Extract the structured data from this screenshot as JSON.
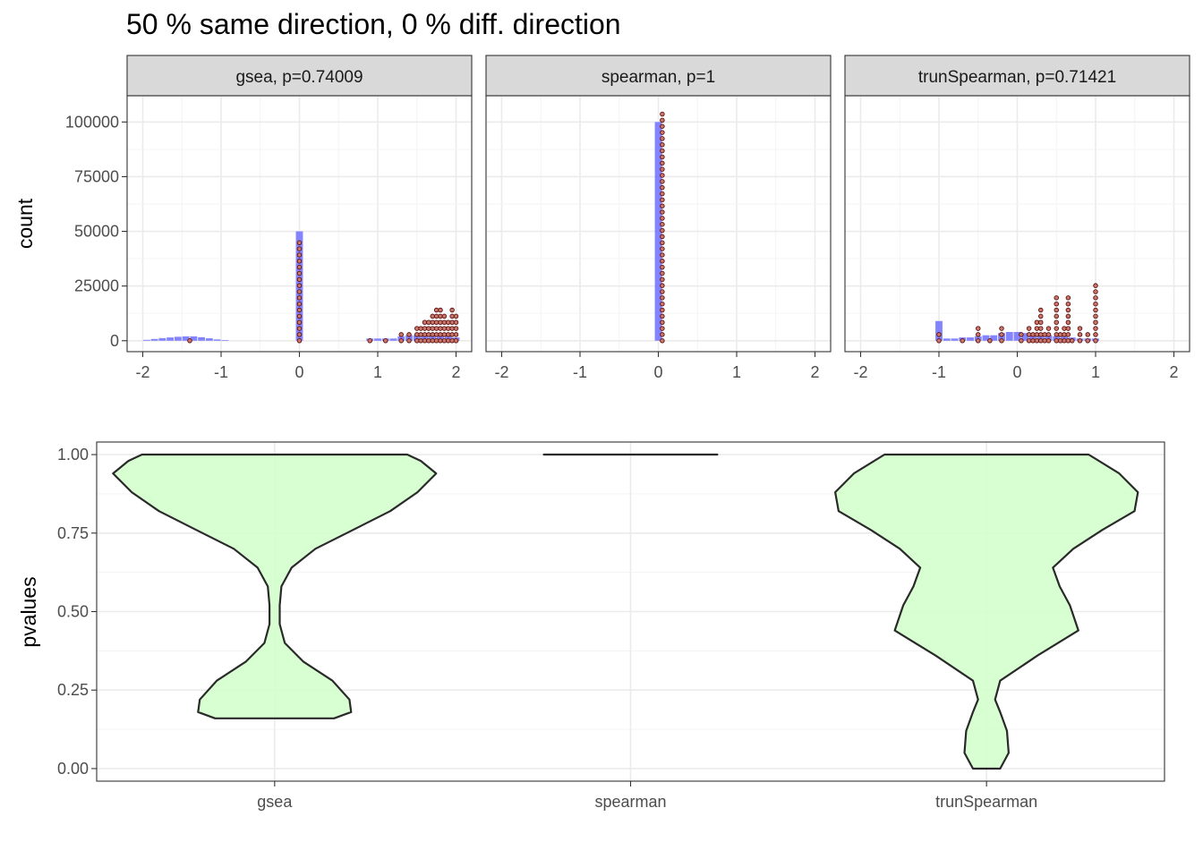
{
  "figure": {
    "title": "50 % same direction, 0 % diff. direction",
    "colors": {
      "hist_fill": "#6f6fff",
      "dot_fill": "#c8776a",
      "dot_edge": "#5a1010",
      "violin_fill": "#d4ffcc",
      "violin_edge": "#2a2a2a",
      "strip_bg": "#d9d9d9"
    }
  },
  "chart_data": [
    {
      "type": "histogram",
      "panel": "top",
      "facets": [
        {
          "label": "gsea, p=0.74009",
          "hist": [
            [
              -1.95,
              400
            ],
            [
              -1.85,
              800
            ],
            [
              -1.75,
              1200
            ],
            [
              -1.65,
              1500
            ],
            [
              -1.55,
              1800
            ],
            [
              -1.45,
              2000
            ],
            [
              -1.35,
              2000
            ],
            [
              -1.25,
              1600
            ],
            [
              -1.15,
              1100
            ],
            [
              -1.05,
              600
            ],
            [
              -0.95,
              300
            ],
            [
              0,
              50000
            ],
            [
              0.9,
              1000
            ],
            [
              1.0,
              1000
            ],
            [
              1.1,
              1000
            ],
            [
              1.2,
              1000
            ],
            [
              1.3,
              2000
            ],
            [
              1.4,
              2500
            ],
            [
              1.5,
              2500
            ],
            [
              1.6,
              3000
            ],
            [
              1.7,
              3000
            ],
            [
              1.8,
              3000
            ],
            [
              1.9,
              2500
            ],
            [
              2.0,
              1500
            ]
          ],
          "dots": [
            [
              -1.4,
              2000
            ],
            [
              0,
              45000
            ],
            [
              0.9,
              500
            ],
            [
              1.1,
              1000
            ],
            [
              1.3,
              5000
            ],
            [
              1.4,
              5000
            ],
            [
              1.5,
              8000
            ],
            [
              1.55,
              6000
            ],
            [
              1.6,
              10000
            ],
            [
              1.65,
              10000
            ],
            [
              1.7,
              13000
            ],
            [
              1.75,
              15000
            ],
            [
              1.8,
              14000
            ],
            [
              1.85,
              13000
            ],
            [
              1.9,
              10000
            ],
            [
              1.95,
              16000
            ],
            [
              2.0,
              13000
            ]
          ]
        },
        {
          "label": "spearman, p=1",
          "hist": [
            [
              0,
              100000
            ]
          ],
          "dots": [
            [
              0.05,
              105000
            ]
          ]
        },
        {
          "label": "trunSpearman, p=0.71421",
          "hist": [
            [
              -1,
              9000
            ],
            [
              -0.9,
              1000
            ],
            [
              -0.8,
              1000
            ],
            [
              -0.7,
              1500
            ],
            [
              -0.6,
              1500
            ],
            [
              -0.5,
              2000
            ],
            [
              -0.4,
              2500
            ],
            [
              -0.3,
              2500
            ],
            [
              -0.2,
              3500
            ],
            [
              -0.1,
              4000
            ],
            [
              0,
              4000
            ],
            [
              0.1,
              3500
            ],
            [
              0.2,
              3000
            ],
            [
              0.3,
              2500
            ],
            [
              0.4,
              2500
            ],
            [
              0.5,
              2000
            ],
            [
              0.6,
              2000
            ],
            [
              0.7,
              1500
            ],
            [
              0.8,
              1000
            ],
            [
              0.9,
              1000
            ],
            [
              1,
              1000
            ]
          ],
          "dots": [
            [
              -1,
              5000
            ],
            [
              -0.7,
              1500
            ],
            [
              -0.5,
              6000
            ],
            [
              -0.35,
              2000
            ],
            [
              -0.2,
              8000
            ],
            [
              0.05,
              5000
            ],
            [
              0.15,
              8000
            ],
            [
              0.2,
              4000
            ],
            [
              0.25,
              10000
            ],
            [
              0.3,
              15000
            ],
            [
              0.35,
              4000
            ],
            [
              0.4,
              6000
            ],
            [
              0.5,
              20000
            ],
            [
              0.55,
              4000
            ],
            [
              0.6,
              8000
            ],
            [
              0.65,
              20000
            ],
            [
              0.7,
              2000
            ],
            [
              0.8,
              6000
            ],
            [
              0.9,
              5000
            ],
            [
              1,
              27000
            ]
          ]
        }
      ],
      "xlim": [
        -2.2,
        2.2
      ],
      "ylim": [
        -5000,
        112000
      ],
      "xticks": [
        "-2",
        "-1",
        "0",
        "1",
        "2"
      ],
      "xtick_values": [
        -2,
        -1,
        0,
        1,
        2
      ],
      "yticks": [
        "0",
        "25000",
        "50000",
        "75000",
        "100000"
      ],
      "ytick_values": [
        0,
        25000,
        50000,
        75000,
        100000
      ],
      "ylabel": "count",
      "xlabel": ""
    },
    {
      "type": "violin",
      "panel": "bottom",
      "categories": [
        "gsea",
        "spearman",
        "trunSpearman"
      ],
      "ylabel": "pvalues",
      "xlabel": "",
      "ylim": [
        -0.04,
        1.04
      ],
      "yticks": [
        "0.00",
        "0.25",
        "0.50",
        "0.75",
        "1.00"
      ],
      "ytick_values": [
        0,
        0.25,
        0.5,
        0.75,
        1
      ],
      "violins": [
        {
          "category": "gsea",
          "profile": [
            [
              0.16,
              0.35
            ],
            [
              0.18,
              0.45
            ],
            [
              0.22,
              0.44
            ],
            [
              0.28,
              0.34
            ],
            [
              0.34,
              0.17
            ],
            [
              0.4,
              0.06
            ],
            [
              0.46,
              0.03
            ],
            [
              0.52,
              0.03
            ],
            [
              0.58,
              0.04
            ],
            [
              0.64,
              0.1
            ],
            [
              0.7,
              0.24
            ],
            [
              0.76,
              0.46
            ],
            [
              0.82,
              0.68
            ],
            [
              0.88,
              0.84
            ],
            [
              0.94,
              0.95
            ],
            [
              0.98,
              0.86
            ],
            [
              1.0,
              0.78
            ]
          ]
        },
        {
          "category": "spearman",
          "profile": [
            [
              1.0,
              0.51
            ],
            [
              1.0,
              0.51
            ]
          ]
        },
        {
          "category": "trunSpearman",
          "profile": [
            [
              0.0,
              0.08
            ],
            [
              0.05,
              0.13
            ],
            [
              0.12,
              0.12
            ],
            [
              0.18,
              0.08
            ],
            [
              0.22,
              0.05
            ],
            [
              0.28,
              0.08
            ],
            [
              0.36,
              0.3
            ],
            [
              0.44,
              0.54
            ],
            [
              0.52,
              0.49
            ],
            [
              0.58,
              0.43
            ],
            [
              0.64,
              0.39
            ],
            [
              0.7,
              0.51
            ],
            [
              0.76,
              0.68
            ],
            [
              0.82,
              0.87
            ],
            [
              0.88,
              0.89
            ],
            [
              0.94,
              0.78
            ],
            [
              1.0,
              0.6
            ]
          ]
        }
      ]
    }
  ]
}
